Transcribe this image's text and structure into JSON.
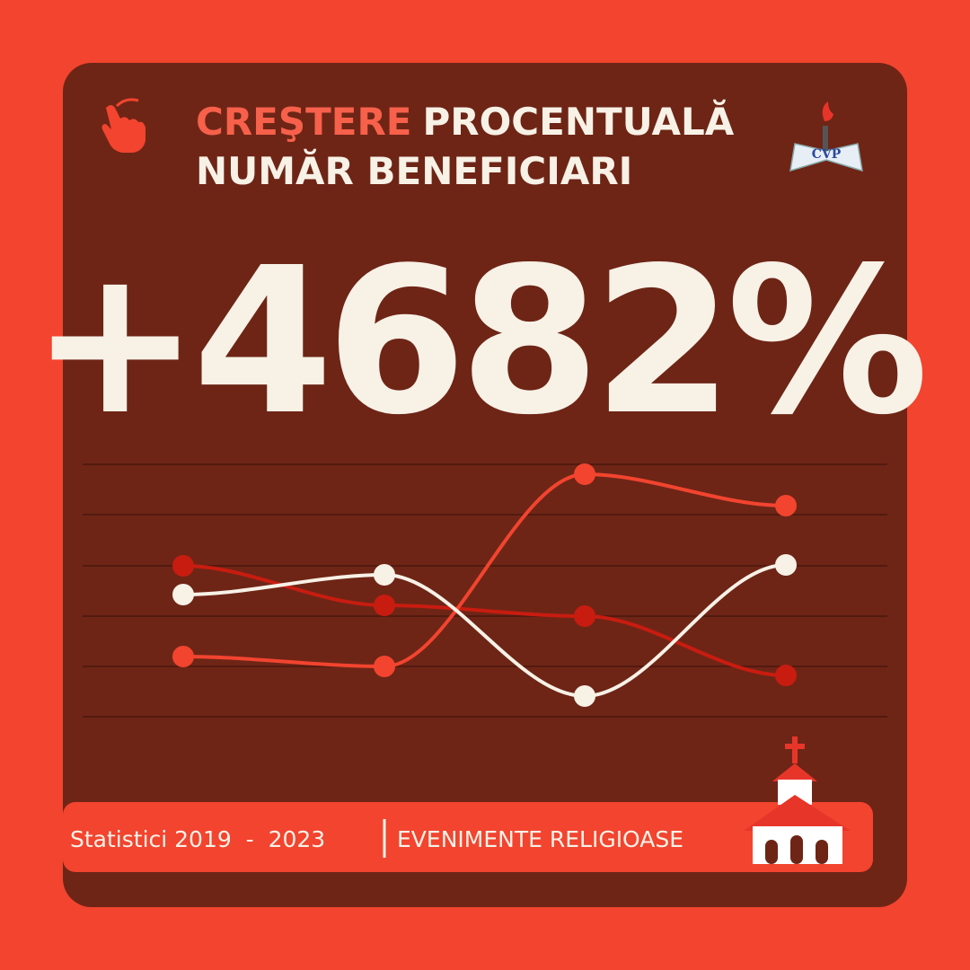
{
  "header": {
    "title_highlight": "CREŞTERE",
    "title_rest": "PROCENTUALĂ",
    "title_line2": "NUMĂR BENEFICIARI"
  },
  "headline": "+4682%",
  "logo": {
    "text": "CVP"
  },
  "footer": {
    "label": "Statistici 2019  -  2023",
    "category": "EVENIMENTE RELIGIOASE"
  }
}
